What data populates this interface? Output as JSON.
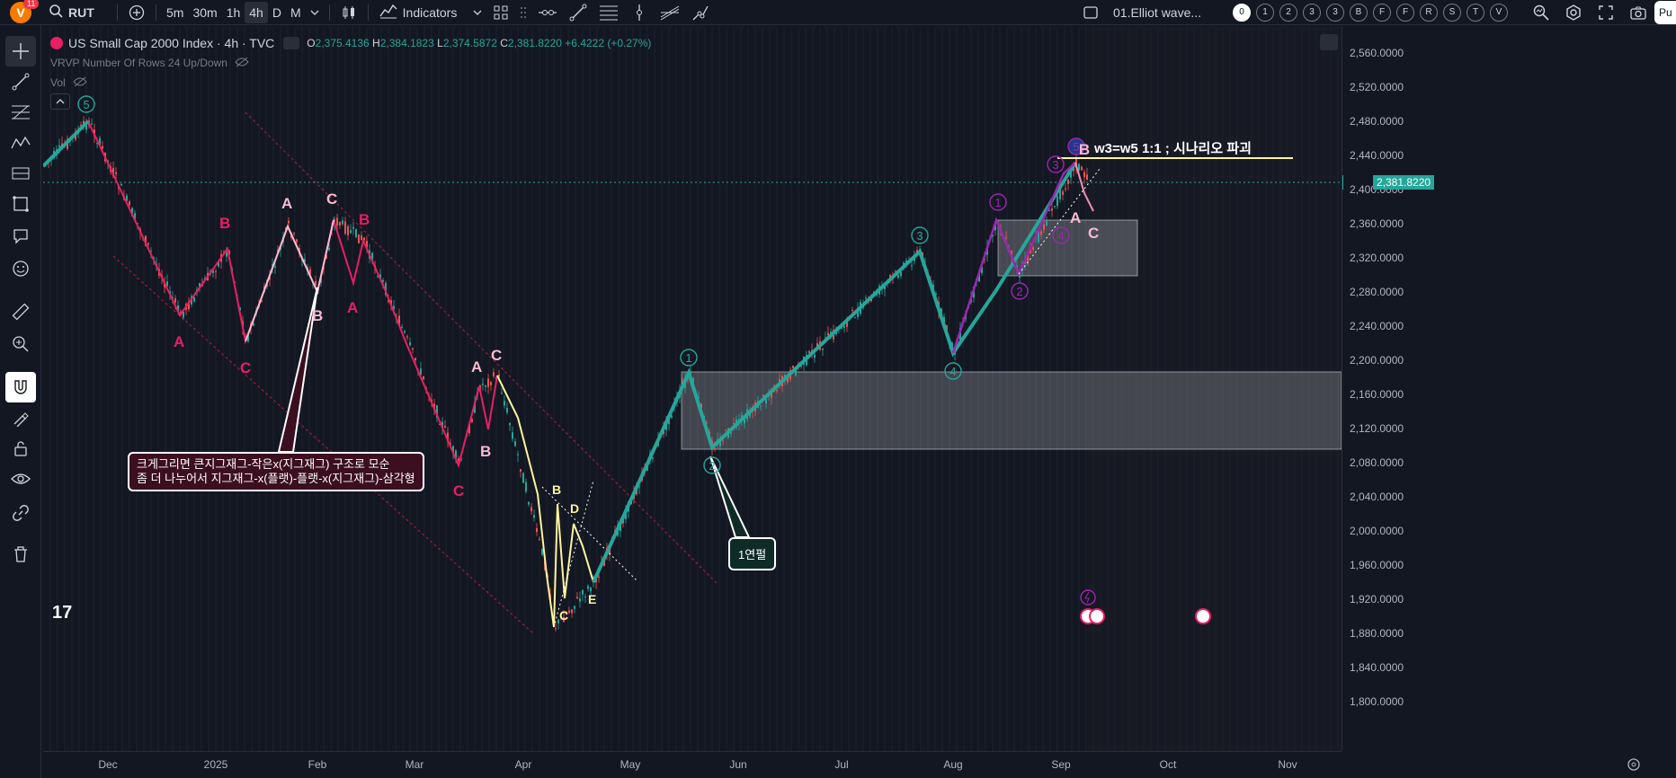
{
  "topbar": {
    "avatar_letter": "V",
    "notification_count": "11",
    "symbol": "RUT",
    "timeframes": [
      "5m",
      "30m",
      "1h",
      "4h",
      "D",
      "M"
    ],
    "active_timeframe": "4h",
    "indicators_label": "Indicators",
    "layout_name": "01.Elliot wave...",
    "wave_degrees": [
      "0",
      "1",
      "2",
      "3",
      "3",
      "B",
      "F",
      "F",
      "R",
      "S",
      "T",
      "V"
    ],
    "publish_label": "Pu"
  },
  "legend": {
    "title": "US Small Cap 2000 Index · 4h · TVC",
    "open_key": "O",
    "open": "2,375.4136",
    "high_key": "H",
    "high": "2,384.1823",
    "low_key": "L",
    "low": "2,374.5872",
    "close_key": "C",
    "close": "2,381.8220",
    "change": "+6.4222 (+0.27%)",
    "vrvp": "VRVP Number Of Rows 24 Up/Down",
    "vol": "Vol"
  },
  "price_axis": {
    "labels": [
      "2,560.0000",
      "2,520.0000",
      "2,480.0000",
      "2,440.0000",
      "2,400.0000",
      "2,360.0000",
      "2,320.0000",
      "2,280.0000",
      "2,240.0000",
      "2,200.0000",
      "2,160.0000",
      "2,120.0000",
      "2,080.0000",
      "2,040.0000",
      "2,000.0000",
      "1,960.0000",
      "1,920.0000",
      "1,880.0000",
      "1,840.0000",
      "1,800.0000"
    ],
    "symbol_tag": "RUT",
    "current_price": "2,381.8220"
  },
  "time_axis": {
    "labels": [
      "Dec",
      "2025",
      "Feb",
      "Mar",
      "Apr",
      "May",
      "Jun",
      "Jul",
      "Aug",
      "Sep",
      "Oct",
      "Nov"
    ]
  },
  "annotations": {
    "callout_korean": [
      "크게그리면 큰지그재그-작은x(지그재그) 구조로 모순",
      "좀 더 나누어서 지그재그-x(플랫)-플랫-x(지그재그)-삼각형"
    ],
    "callout_1yr": "1연펄",
    "scenario": "w3=w5 1:1 ; 시나리오 파괴"
  },
  "wave_labels": {
    "pink": [
      "A",
      "B",
      "C",
      "B",
      "A",
      "C",
      "B",
      "A",
      "C",
      "A",
      "B",
      "C",
      "A",
      "C"
    ],
    "yellow": [
      "B",
      "D",
      "C",
      "E"
    ],
    "green_circle": [
      "5",
      "1",
      "2",
      "3",
      "4"
    ],
    "purple_circle": [
      "1",
      "2",
      "3",
      "4",
      "5"
    ]
  },
  "colors": {
    "background": "#131722",
    "bull": "#26a69a",
    "bear": "#ef5350",
    "wave_pink": "#e91e63",
    "wave_light_pink": "#f8bbd0",
    "wave_green": "#26a69a",
    "wave_yellow": "#fff59d",
    "wave_purple": "#9c27b0"
  },
  "icons": [
    "crosshair-icon",
    "trend-line-icon",
    "fib-icon",
    "pattern-icon",
    "prediction-icon",
    "shapes-icon",
    "text-icon",
    "emoji-icon",
    "ruler-icon",
    "zoom-icon",
    "magnet-icon",
    "lock-draw-icon",
    "lock-icon",
    "eye-icon",
    "link-icon",
    "trash-icon"
  ]
}
